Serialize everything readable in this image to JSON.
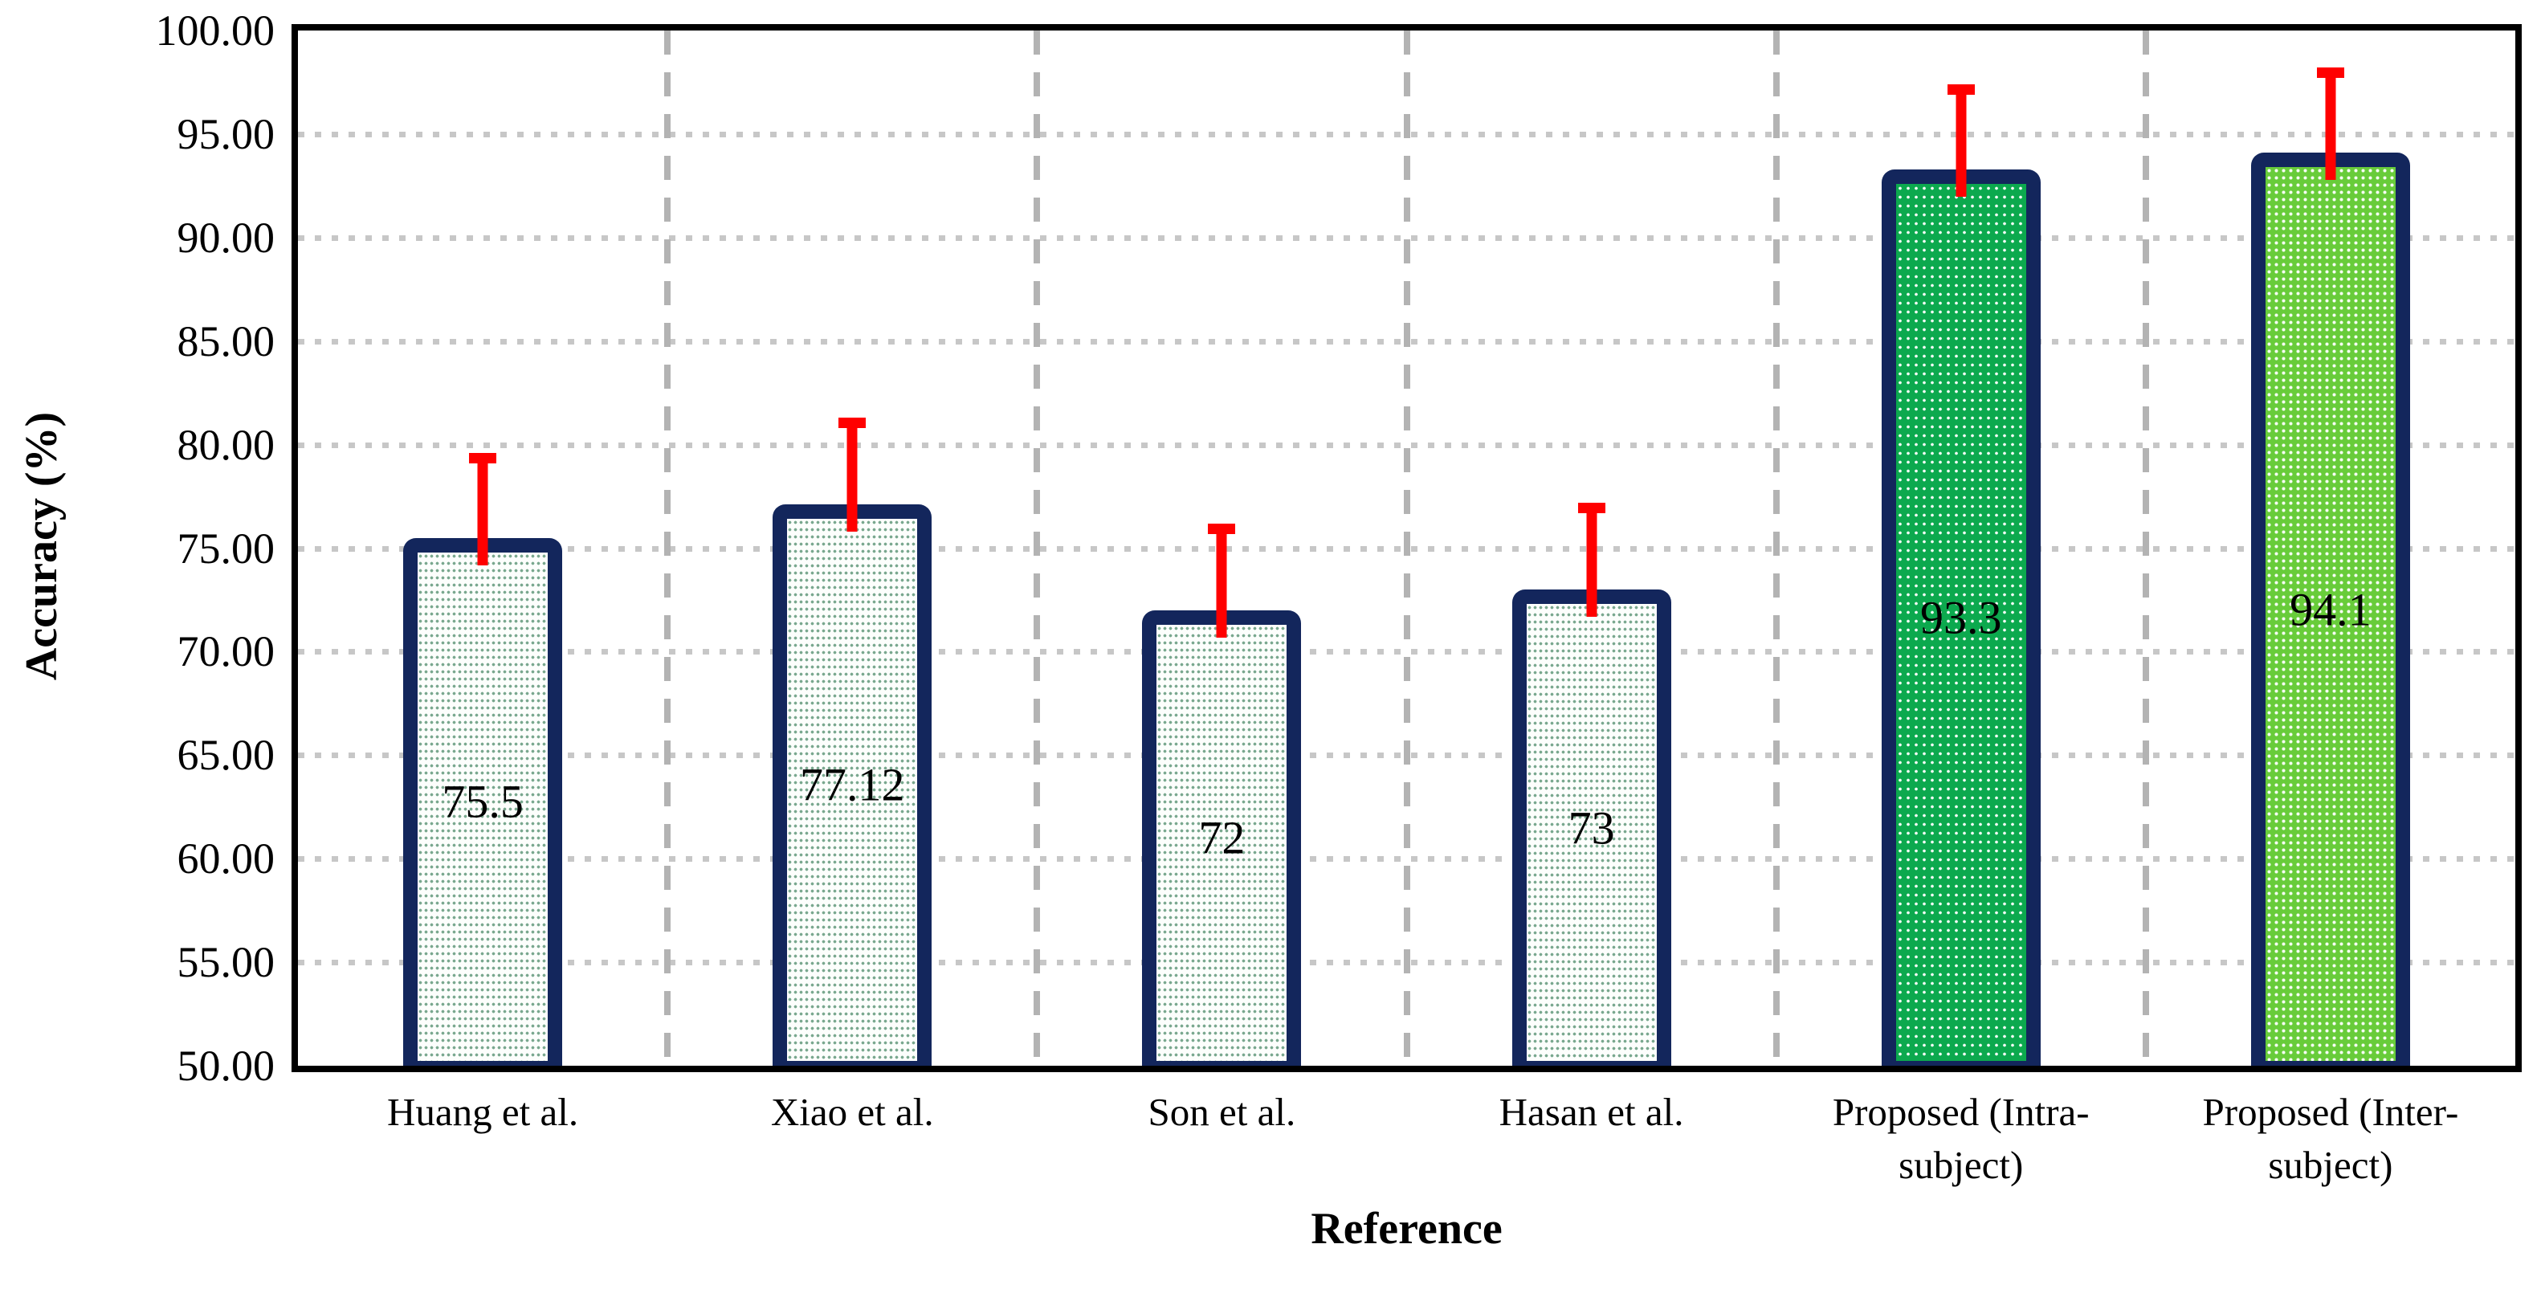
{
  "chart_data": {
    "type": "bar",
    "title": "",
    "xlabel": "Reference",
    "ylabel": "Accuracy (%)",
    "ylim": [
      50,
      100
    ],
    "ytick_step": 5,
    "ytick_labels": [
      "100.00",
      "95.00",
      "90.00",
      "85.00",
      "80.00",
      "75.00",
      "70.00",
      "65.00",
      "60.00",
      "55.00",
      "50.00"
    ],
    "categories": [
      "Huang et al.",
      "Xiao et al.",
      "Son et al.",
      "Hasan et al.",
      "Proposed (Intra-subject)",
      "Proposed (Inter-subject)"
    ],
    "values": [
      75.5,
      77.12,
      72,
      73,
      93.3,
      94.1
    ],
    "value_labels": [
      "75.5",
      "77.12",
      "72",
      "73",
      "93.3",
      "94.1"
    ],
    "error_upper": [
      4.1,
      4.2,
      4.2,
      4.2,
      4.1,
      4.1
    ],
    "bar_styles": [
      "pale",
      "pale",
      "pale",
      "pale",
      "intra",
      "inter"
    ],
    "legend_position": "none",
    "grid": {
      "horizontal": "dotted",
      "vertical": "dashed"
    },
    "colors": {
      "bar_border": "#13265c",
      "bar_fill_pale": "#fcfefc",
      "bar_dot_pale": "#226e46",
      "bar_fill_intra": "#0ca94e",
      "bar_fill_inter": "#68cc3a",
      "error_bar": "#ff0000",
      "gridline_horizontal": "#c7c7c7",
      "gridline_vertical": "#b3b3b3",
      "axis": "#000000",
      "text": "#000000"
    }
  }
}
